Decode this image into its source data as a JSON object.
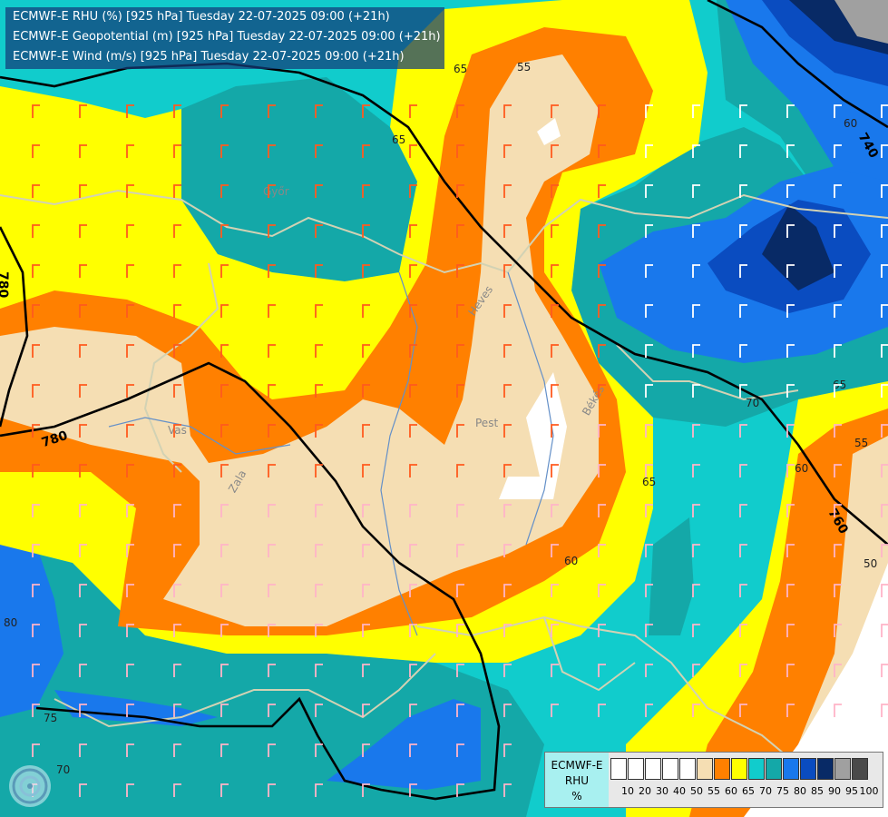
{
  "header": {
    "line1": "ECMWF-E RHU (%) [925 hPa] Tuesday 22-07-2025 09:00 (+21h)",
    "line2": "ECMWF-E Geopotential (m) [925 hPa] Tuesday 22-07-2025 09:00 (+21h)",
    "line3": "ECMWF-E Wind (m/s) [925 hPa] Tuesday 22-07-2025 09:00 (+21h)"
  },
  "legend": {
    "title_lines": [
      "ECMWF-E",
      "RHU",
      "%"
    ],
    "bins": [
      {
        "label": "10",
        "color": "#ffffff"
      },
      {
        "label": "20",
        "color": "#ffffff"
      },
      {
        "label": "30",
        "color": "#ffffff"
      },
      {
        "label": "40",
        "color": "#ffffff"
      },
      {
        "label": "50",
        "color": "#ffffff"
      },
      {
        "label": "55",
        "color": "#f5deb3"
      },
      {
        "label": "60",
        "color": "#ff8000"
      },
      {
        "label": "65",
        "color": "#ffff00"
      },
      {
        "label": "70",
        "color": "#11cccc"
      },
      {
        "label": "75",
        "color": "#14a8a8"
      },
      {
        "label": "80",
        "color": "#1978ec"
      },
      {
        "label": "85",
        "color": "#0a4cc0"
      },
      {
        "label": "90",
        "color": "#082a66"
      },
      {
        "label": "95",
        "color": "#a0a0a0"
      },
      {
        "label": "100",
        "color": "#4a4a4a"
      }
    ]
  },
  "map": {
    "place_labels": [
      "Pest",
      "Vas",
      "Zala",
      "Heves",
      "Békés",
      "Győr"
    ],
    "rhu_contour_labels": [
      "55",
      "65",
      "65",
      "70",
      "60",
      "60",
      "55",
      "50",
      "65",
      "75",
      "70",
      "80",
      "60",
      "65"
    ],
    "geopotential_labels": [
      "780",
      "780",
      "740",
      "760"
    ]
  },
  "colors": {
    "very_dry": "#ffffff",
    "dry": "#f5deb3",
    "orange": "#ff8000",
    "yellow": "#ffff00",
    "cyan": "#11cccc",
    "teal": "#14a8a8",
    "blue": "#1978ec",
    "dark_blue": "#0a4cc0",
    "navy": "#082a66",
    "grey": "#a0a0a0",
    "barb_orange": "#ff5a1e",
    "barb_pink": "#ffb4c8",
    "barb_white": "#ffffff",
    "border": "#d2d2b4",
    "river": "#6490c8"
  }
}
